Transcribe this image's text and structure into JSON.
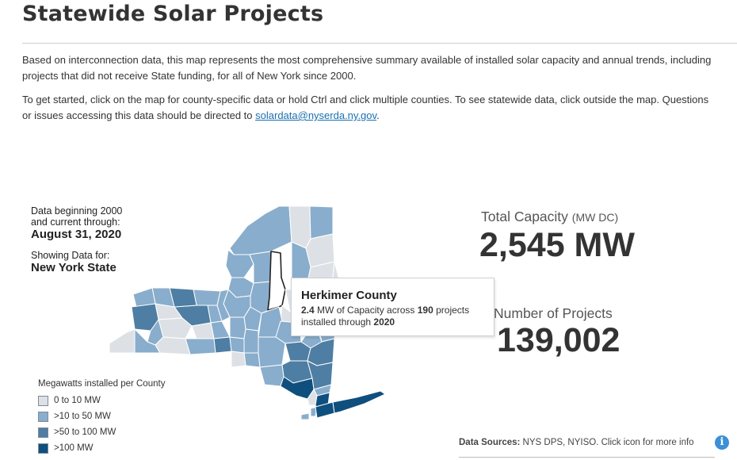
{
  "page": {
    "title": "Statewide Solar Projects",
    "intro": "Based on interconnection data, this map represents the most comprehensive summary available of installed solar capacity and annual trends, including projects that did not receive State funding, for all of New York since 2000.",
    "instructions": "To get started, click on the map for county-specific data or hold Ctrl and click multiple counties. To see statewide data, click outside the map. Questions or issues accessing this data should be directed to",
    "contact_email": "solardata@nyserda.ny.gov",
    "trailing_period": "."
  },
  "data_info": {
    "line1": "Data beginning 2000",
    "line2": "and current through:",
    "date": "August 31, 2020",
    "showing_label": "Showing Data for:",
    "showing_value": "New York State"
  },
  "stats": {
    "capacity_label": "Total Capacity",
    "capacity_unit": "(MW DC)",
    "capacity_value": "2,545 MW",
    "projects_label": "Number of Projects",
    "projects_value": "139,002"
  },
  "tooltip": {
    "county": "Herkimer County",
    "capacity": "2.4",
    "capacity_text": "MW of Capacity across",
    "projects": "190",
    "projects_text": "projects",
    "installed_text": "installed through",
    "year": "2020"
  },
  "legend": {
    "title": "Megawatts installed per County",
    "items": [
      {
        "label": "0 to 10 MW",
        "color": "#dde1e6"
      },
      {
        "label": ">10 to 50 MW",
        "color": "#89adcc"
      },
      {
        "label": ">50 to 100 MW",
        "color": "#4e7ea3"
      },
      {
        "label": ">100 MW",
        "color": "#0f4f7e"
      }
    ]
  },
  "footer": {
    "sources_label": "Data Sources:",
    "sources_text": "NYS DPS, NYISO.",
    "more_info": "Click icon for more info",
    "info_icon": "info-icon"
  },
  "colors": {
    "level0": "#dde1e6",
    "level1": "#89adcc",
    "level2": "#4e7ea3",
    "level3": "#0f4f7e",
    "link": "#1a6faf",
    "info": "#3d8fd6"
  }
}
